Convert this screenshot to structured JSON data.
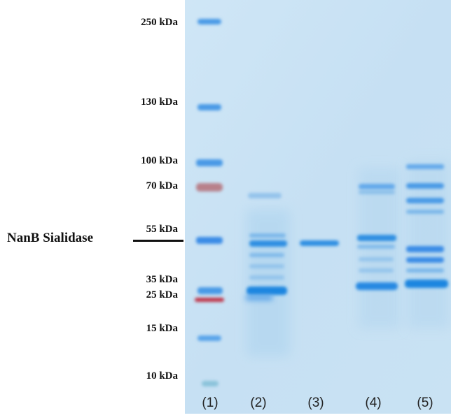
{
  "annotation": {
    "label": "NanB Sialidase"
  },
  "markers": [
    {
      "label": "250 kDa",
      "band_color": "#4a9ae6"
    },
    {
      "label": "130 kDa",
      "band_color": "#4a9ae6"
    },
    {
      "label": "100 kDa",
      "band_color": "#4a9ae6"
    },
    {
      "label": "70 kDa",
      "band_color": "#b8808a"
    },
    {
      "label": "55 kDa",
      "band_color": "#3a8ce6"
    },
    {
      "label": "35 kDa",
      "band_color": "#4a9ae6"
    },
    {
      "label": "25 kDa",
      "band_color": "#c0344a"
    },
    {
      "label": "15 kDa",
      "band_color": "#5aa4ea"
    },
    {
      "label": "10 kDa",
      "band_color": "#7cbcd4"
    }
  ],
  "lanes": [
    "(1)",
    "(2)",
    "(3)",
    "(4)",
    "(5)"
  ],
  "colors": {
    "gel_background": "#c8e2f4",
    "band_blue": "#2f8fe2",
    "marker_red": "#c0344a"
  }
}
